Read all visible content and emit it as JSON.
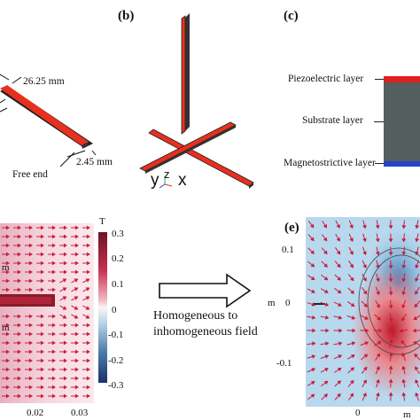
{
  "panel_a": {
    "dim_length": "26.25 mm",
    "dim_width": "2.45 mm",
    "free_end": "Free end"
  },
  "panel_b": {
    "label": "(b)",
    "axes": {
      "y": "y",
      "z": "z",
      "x": "x"
    }
  },
  "panel_c": {
    "label": "(c)",
    "layers": [
      "Piezoelectric layer",
      "Substrate layer",
      "Magnetostrictive layer"
    ],
    "colors": {
      "piezo": "#e02020",
      "substrate": "#555e5e",
      "magneto": "#2244cc"
    }
  },
  "panel_d": {
    "colorbar_unit": "T",
    "colorbar_ticks": [
      "0.3",
      "0.2",
      "0.1",
      "0",
      "-0.1",
      "-0.2",
      "-0.3"
    ],
    "x_ticks": [
      "0.02",
      "0.03"
    ],
    "axis_unit": "m"
  },
  "middle": {
    "text_line1": "Homogeneous to",
    "text_line2": "inhomogeneous field"
  },
  "panel_e": {
    "label": "(e)",
    "y_ticks": [
      "0.1",
      "0",
      "-0.1"
    ],
    "y_unit": "m",
    "x_ticks": [
      "0"
    ],
    "x_unit": "m"
  }
}
